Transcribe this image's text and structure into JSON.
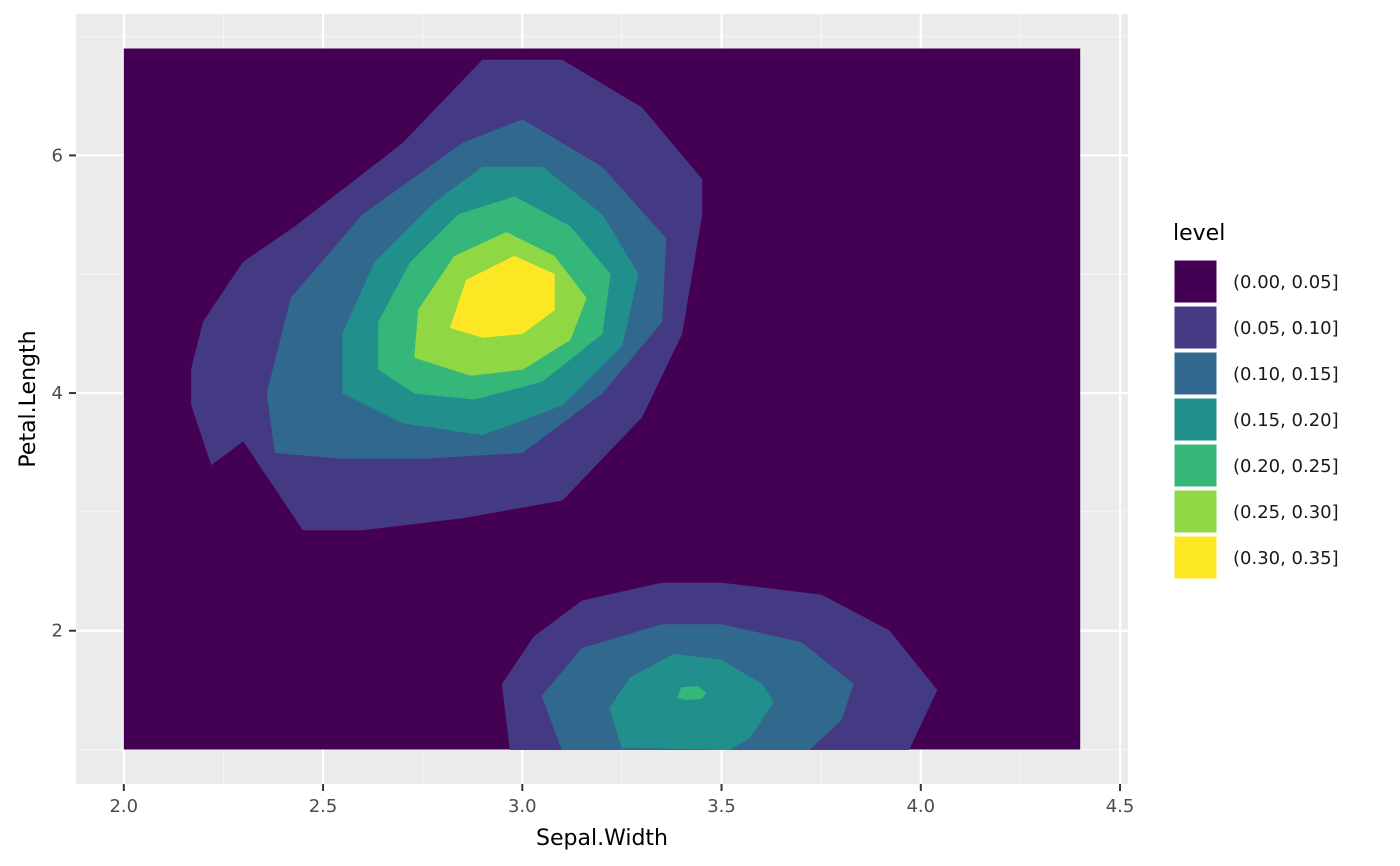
{
  "chart_data": {
    "type": "filled-contour",
    "xlabel": "Sepal.Width",
    "ylabel": "Petal.Length",
    "xlim": [
      1.88,
      4.52
    ],
    "ylim": [
      0.71,
      7.19
    ],
    "x_ticks": [
      2.0,
      2.5,
      3.0,
      3.5,
      4.0,
      4.5
    ],
    "x_tick_labels": [
      "2.0",
      "2.5",
      "3.0",
      "3.5",
      "4.0",
      "4.5"
    ],
    "y_ticks": [
      2,
      4,
      6
    ],
    "y_tick_labels": [
      "2",
      "4",
      "6"
    ],
    "data_extent": {
      "x": [
        2.0,
        4.4
      ],
      "y": [
        1.0,
        6.9
      ]
    },
    "grid": true,
    "legend": {
      "title": "level",
      "position": "right",
      "entries": [
        {
          "label": "(0.00, 0.05]",
          "color": "#440154"
        },
        {
          "label": "(0.05, 0.10]",
          "color": "#443A83"
        },
        {
          "label": "(0.10, 0.15]",
          "color": "#31688E"
        },
        {
          "label": "(0.15, 0.20]",
          "color": "#21908D"
        },
        {
          "label": "(0.20, 0.25]",
          "color": "#35B779"
        },
        {
          "label": "(0.25, 0.30]",
          "color": "#8FD744"
        },
        {
          "label": "(0.30, 0.35]",
          "color": "#FDE725"
        }
      ]
    },
    "density_peaks": [
      {
        "x": 2.95,
        "y": 4.8,
        "level_max": 0.35
      },
      {
        "x": 3.42,
        "y": 1.48,
        "level_max": 0.25
      }
    ]
  },
  "colors": {
    "panel_background": "#EBEBEB",
    "grid_major": "#FFFFFF",
    "grid_minor": "#F5F5F5",
    "tick": "#333333"
  }
}
